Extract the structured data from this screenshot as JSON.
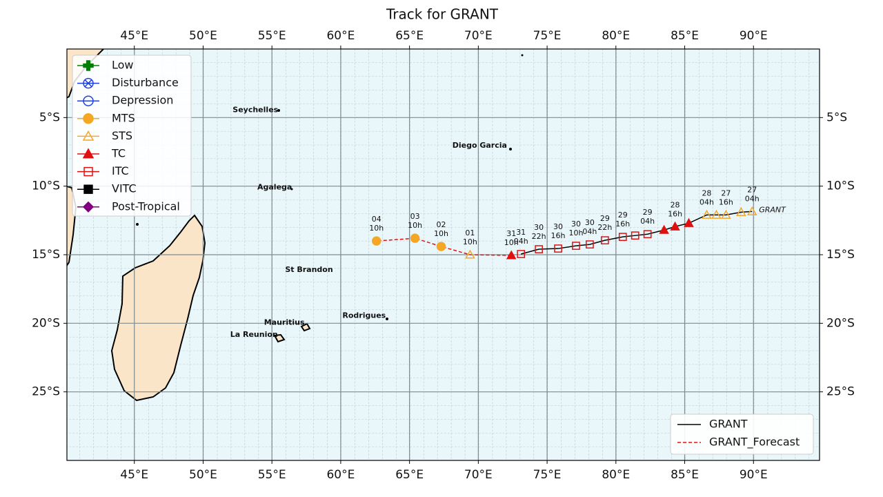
{
  "chart_data": {
    "type": "track",
    "title": "Track for GRANT",
    "xlim": [
      40.1,
      94.8
    ],
    "ylim": [
      -30,
      0
    ],
    "xticks": [
      {
        "value": 45,
        "label": "45°E"
      },
      {
        "value": 50,
        "label": "50°E"
      },
      {
        "value": 55,
        "label": "55°E"
      },
      {
        "value": 60,
        "label": "60°E"
      },
      {
        "value": 65,
        "label": "65°E"
      },
      {
        "value": 70,
        "label": "70°E"
      },
      {
        "value": 75,
        "label": "75°E"
      },
      {
        "value": 80,
        "label": "80°E"
      },
      {
        "value": 85,
        "label": "85°E"
      },
      {
        "value": 90,
        "label": "90°E"
      }
    ],
    "yticks": [
      {
        "value": -5,
        "label": "5°S"
      },
      {
        "value": -10,
        "label": "10°S"
      },
      {
        "value": -15,
        "label": "15°S"
      },
      {
        "value": -20,
        "label": "20°S"
      },
      {
        "value": -25,
        "label": "25°S"
      }
    ],
    "grid": true,
    "stages": [
      {
        "name": "Low",
        "color": "#008000",
        "marker": "plus",
        "filled": true
      },
      {
        "name": "Disturbance",
        "color": "#1f3fe0",
        "marker": "x-circle",
        "filled": false
      },
      {
        "name": "Depression",
        "color": "#1f3fe0",
        "marker": "circle",
        "filled": false
      },
      {
        "name": "MTS",
        "color": "#f5a623",
        "marker": "circle",
        "filled": true
      },
      {
        "name": "STS",
        "color": "#f5a623",
        "marker": "triangle",
        "filled": false
      },
      {
        "name": "TC",
        "color": "#e01010",
        "marker": "triangle",
        "filled": true
      },
      {
        "name": "ITC",
        "color": "#e01010",
        "marker": "square",
        "filled": false
      },
      {
        "name": "VITC",
        "color": "#000000",
        "marker": "square",
        "filled": true
      },
      {
        "name": "Post-Tropical",
        "color": "#800080",
        "marker": "diamond",
        "filled": true
      }
    ],
    "series": [
      {
        "name": "GRANT",
        "color": "#000000",
        "dashed": false,
        "x": [
          89.9,
          89.1,
          88.0,
          87.3,
          86.6,
          85.3,
          84.3,
          83.5,
          82.3,
          81.4,
          80.5,
          79.2,
          78.1,
          77.1,
          75.8,
          74.4,
          73.1
        ],
        "values": [
          -11.85,
          -11.9,
          -12.1,
          -12.1,
          -12.1,
          -12.7,
          -12.95,
          -13.2,
          -13.5,
          -13.6,
          -13.7,
          -13.95,
          -14.25,
          -14.35,
          -14.55,
          -14.6,
          -14.95
        ],
        "stages": [
          "STS",
          "STS",
          "STS",
          "STS",
          "STS",
          "TC",
          "TC",
          "TC",
          "ITC",
          "ITC",
          "ITC",
          "ITC",
          "ITC",
          "ITC",
          "ITC",
          "ITC",
          "ITC"
        ],
        "days": [
          "27",
          null,
          "27",
          null,
          "28",
          null,
          "28",
          null,
          "29",
          null,
          "29",
          "29",
          "30",
          "30",
          "30",
          "30",
          "31"
        ],
        "hours": [
          "04h",
          null,
          "16h",
          null,
          "04h",
          null,
          "16h",
          null,
          "04h",
          null,
          "16h",
          "22h",
          "04h",
          "10h",
          "16h",
          "22h",
          "04h"
        ]
      },
      {
        "name": "GRANT_Forecast",
        "color": "#e01010",
        "dashed": true,
        "x": [
          72.4,
          69.4,
          67.3,
          65.4,
          62.6
        ],
        "values": [
          -15.05,
          -15.0,
          -14.4,
          -13.8,
          -14.0
        ],
        "stages": [
          "TC",
          "STS",
          "MTS",
          "MTS",
          "MTS"
        ],
        "days": [
          "31",
          "01",
          "02",
          "03",
          "04"
        ],
        "hours": [
          "10h",
          "10h",
          "10h",
          "10h",
          "10h"
        ]
      }
    ],
    "storm_label": {
      "text": "GRANT",
      "x": 90.4,
      "y": -11.75
    },
    "places": [
      {
        "name": "Seychelles",
        "x": 53.8,
        "y": -4.45
      },
      {
        "name": "Diego Garcia",
        "x": 70.1,
        "y": -7.05
      },
      {
        "name": "Agalega",
        "x": 55.2,
        "y": -10.1
      },
      {
        "name": "St Brandon",
        "x": 57.7,
        "y": -16.1
      },
      {
        "name": "Rodrigues",
        "x": 61.7,
        "y": -19.45
      },
      {
        "name": "Mauritius",
        "x": 55.9,
        "y": -19.95
      },
      {
        "name": "La Reunion",
        "x": 53.7,
        "y": -20.85
      }
    ]
  }
}
